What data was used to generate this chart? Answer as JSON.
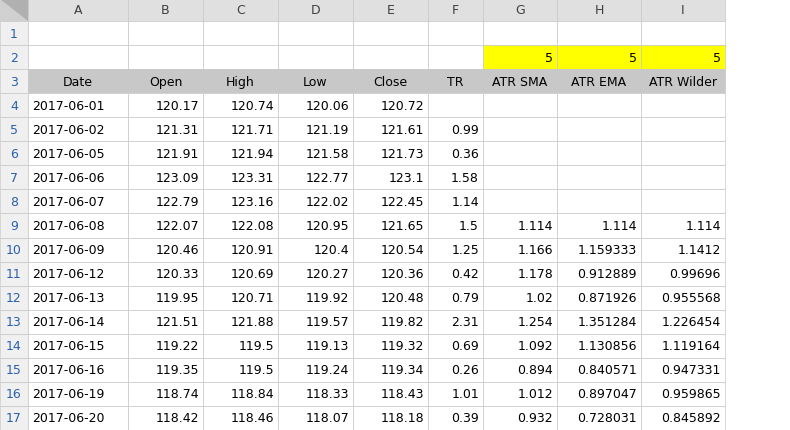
{
  "col_letters": [
    "",
    "A",
    "B",
    "C",
    "D",
    "E",
    "F",
    "G",
    "H",
    "I"
  ],
  "row_labels": [
    "1",
    "2",
    "3",
    "4",
    "5",
    "6",
    "7",
    "8",
    "9",
    "10",
    "11",
    "12",
    "13",
    "14",
    "15",
    "16",
    "17"
  ],
  "header_row3": [
    "Date",
    "Open",
    "High",
    "Low",
    "Close",
    "TR",
    "ATR SMA",
    "ATR EMA",
    "ATR Wilder"
  ],
  "rows": [
    [
      "2017-06-01",
      "120.17",
      "120.74",
      "120.06",
      "120.72",
      "",
      "",
      "",
      ""
    ],
    [
      "2017-06-02",
      "121.31",
      "121.71",
      "121.19",
      "121.61",
      "0.99",
      "",
      "",
      ""
    ],
    [
      "2017-06-05",
      "121.91",
      "121.94",
      "121.58",
      "121.73",
      "0.36",
      "",
      "",
      ""
    ],
    [
      "2017-06-06",
      "123.09",
      "123.31",
      "122.77",
      "123.1",
      "1.58",
      "",
      "",
      ""
    ],
    [
      "2017-06-07",
      "122.79",
      "123.16",
      "122.02",
      "122.45",
      "1.14",
      "",
      "",
      ""
    ],
    [
      "2017-06-08",
      "122.07",
      "122.08",
      "120.95",
      "121.65",
      "1.5",
      "1.114",
      "1.114",
      "1.114"
    ],
    [
      "2017-06-09",
      "120.46",
      "120.91",
      "120.4",
      "120.54",
      "1.25",
      "1.166",
      "1.159333",
      "1.1412"
    ],
    [
      "2017-06-12",
      "120.33",
      "120.69",
      "120.27",
      "120.36",
      "0.42",
      "1.178",
      "0.912889",
      "0.99696"
    ],
    [
      "2017-06-13",
      "119.95",
      "120.71",
      "119.92",
      "120.48",
      "0.79",
      "1.02",
      "0.871926",
      "0.955568"
    ],
    [
      "2017-06-14",
      "121.51",
      "121.88",
      "119.57",
      "119.82",
      "2.31",
      "1.254",
      "1.351284",
      "1.226454"
    ],
    [
      "2017-06-15",
      "119.22",
      "119.5",
      "119.13",
      "119.32",
      "0.69",
      "1.092",
      "1.130856",
      "1.119164"
    ],
    [
      "2017-06-16",
      "119.35",
      "119.5",
      "119.24",
      "119.34",
      "0.26",
      "0.894",
      "0.840571",
      "0.947331"
    ],
    [
      "2017-06-19",
      "118.74",
      "118.84",
      "118.33",
      "118.43",
      "1.01",
      "1.012",
      "0.897047",
      "0.959865"
    ],
    [
      "2017-06-20",
      "118.42",
      "118.46",
      "118.07",
      "118.18",
      "0.39",
      "0.932",
      "0.728031",
      "0.845892"
    ]
  ],
  "header_corner_bg": "#d0d0d0",
  "header_col_bg": "#e0e0e0",
  "row_num_bg": "#f0f0f0",
  "row3_bg": "#c8c8c8",
  "row2_bg": "#ffffff",
  "yellow_bg": "#ffff00",
  "white_bg": "#ffffff",
  "grid_color": "#c8c8c8",
  "text_color": "#000000",
  "row_num_color": "#2b5fad",
  "col_letter_color": "#404040",
  "font_size": 9.0,
  "corner_triangle_color": "#909090"
}
